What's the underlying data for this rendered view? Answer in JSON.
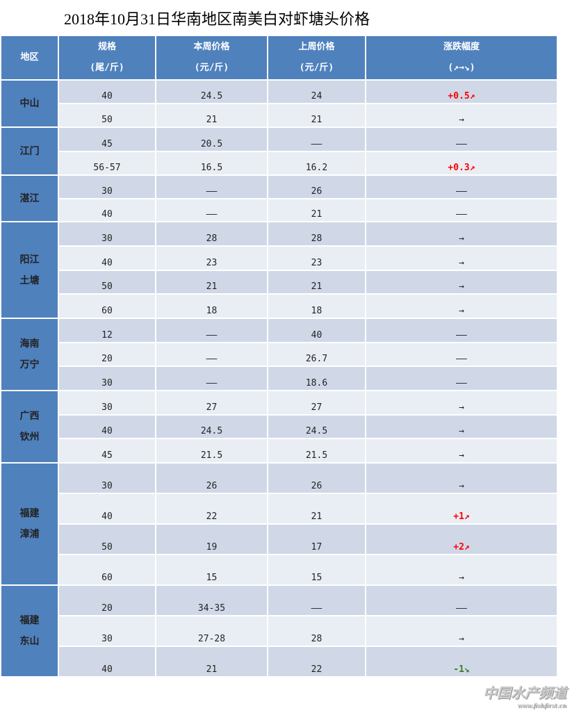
{
  "title": "2018年10月31日华南地区南美白对虾塘头价格",
  "headers": [
    {
      "l1": "地区",
      "l2": ""
    },
    {
      "l1": "规格",
      "l2": "(尾/斤)"
    },
    {
      "l1": "本周价格",
      "l2": "(元/斤)"
    },
    {
      "l1": "上周价格",
      "l2": "(元/斤)"
    },
    {
      "l1": "涨跌幅度",
      "l2": "(↗→↘)"
    }
  ],
  "colors": {
    "header": "#4f81bd",
    "up": "#ff0000",
    "down": "#3a7a2a"
  },
  "groups": [
    {
      "region": [
        "中山"
      ],
      "rows": [
        [
          "40",
          "24.5",
          "24",
          "+0.5↗"
        ],
        [
          "50",
          "21",
          "21",
          "→"
        ]
      ]
    },
    {
      "region": [
        "江门"
      ],
      "rows": [
        [
          "45",
          "20.5",
          "——",
          "——"
        ],
        [
          "56-57",
          "16.5",
          "16.2",
          "+0.3↗"
        ]
      ]
    },
    {
      "region": [
        "湛江"
      ],
      "rows": [
        [
          "30",
          "——",
          "26",
          "——"
        ],
        [
          "40",
          "——",
          "21",
          "——"
        ]
      ]
    },
    {
      "region": [
        "阳江",
        "土塘"
      ],
      "rows": [
        [
          "30",
          "28",
          "28",
          "→"
        ],
        [
          "40",
          "23",
          "23",
          "→"
        ],
        [
          "50",
          "21",
          "21",
          "→"
        ],
        [
          "60",
          "18",
          "18",
          "→"
        ]
      ]
    },
    {
      "region": [
        "海南",
        "万宁"
      ],
      "rows": [
        [
          "12",
          "——",
          "40",
          "——"
        ],
        [
          "20",
          "——",
          "26.7",
          "——"
        ],
        [
          "30",
          "——",
          "18.6",
          "——"
        ]
      ]
    },
    {
      "region": [
        "广西",
        "钦州"
      ],
      "rows": [
        [
          "30",
          "27",
          "27",
          "→"
        ],
        [
          "40",
          "24.5",
          "24.5",
          "→"
        ],
        [
          "45",
          "21.5",
          "21.5",
          "→"
        ]
      ]
    },
    {
      "region": [
        "福建",
        "漳浦"
      ],
      "rows": [
        [
          "30",
          "26",
          "26",
          "→"
        ],
        [
          "40",
          "22",
          "21",
          "+1↗"
        ],
        [
          "50",
          "19",
          "17",
          "+2↗"
        ],
        [
          "60",
          "15",
          "15",
          "→"
        ]
      ]
    },
    {
      "region": [
        "福建",
        "东山"
      ],
      "rows": [
        [
          "20",
          "34-35",
          "——",
          "——"
        ],
        [
          "30",
          "27-28",
          "28",
          "→"
        ],
        [
          "40",
          "21",
          "22",
          "-1↘"
        ]
      ]
    }
  ],
  "watermark": {
    "name": "中国水产频道",
    "url": "www.fishfirst.cn"
  }
}
